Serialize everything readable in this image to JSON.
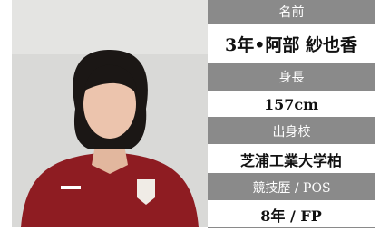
{
  "profile": {
    "fields": [
      {
        "label": "名前",
        "value": "3年•阿部 紗也香"
      },
      {
        "label": "身長",
        "value": "157cm"
      },
      {
        "label": "出身校",
        "value": "芝浦工業大学柏"
      },
      {
        "label": "競技歴 / POS",
        "value": "8年 / FP"
      }
    ]
  }
}
